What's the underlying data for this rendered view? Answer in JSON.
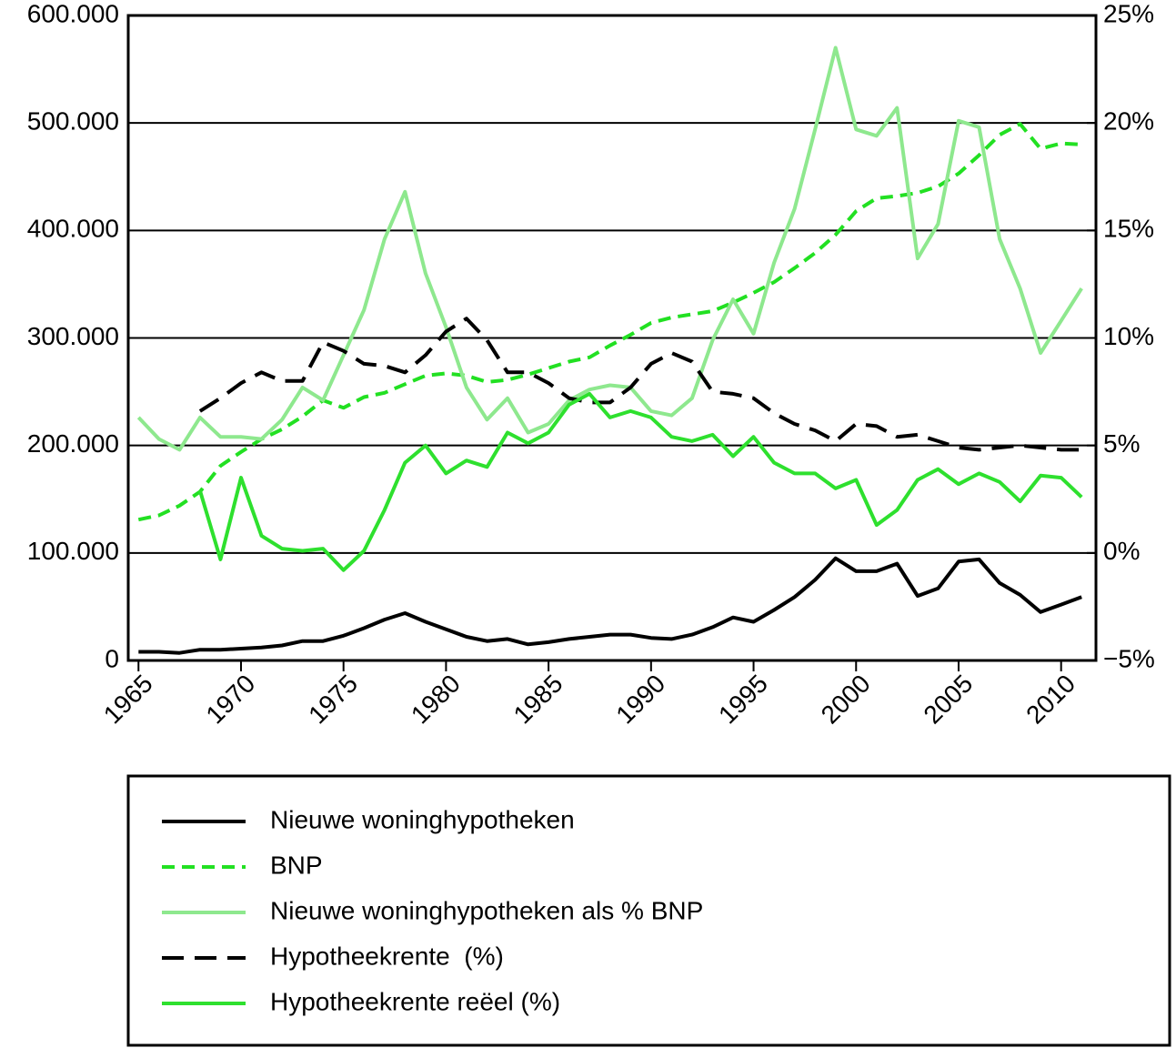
{
  "chart_data": {
    "type": "line",
    "x": [
      1965,
      1966,
      1967,
      1968,
      1969,
      1970,
      1971,
      1972,
      1973,
      1974,
      1975,
      1976,
      1977,
      1978,
      1979,
      1980,
      1981,
      1982,
      1983,
      1984,
      1985,
      1986,
      1987,
      1988,
      1989,
      1990,
      1991,
      1992,
      1993,
      1994,
      1995,
      1996,
      1997,
      1998,
      1999,
      2000,
      2001,
      2002,
      2003,
      2004,
      2005,
      2006,
      2007,
      2008,
      2009,
      2010,
      2011
    ],
    "xlim": [
      1964.5,
      2011.7
    ],
    "xticks": [
      1965,
      1970,
      1975,
      1980,
      1985,
      1990,
      1995,
      2000,
      2005,
      2010
    ],
    "ylim": [
      0,
      600000
    ],
    "yticks": [
      0,
      {
        "value": 100000,
        "label": "100.000"
      },
      {
        "value": 200000,
        "label": "200.000"
      },
      {
        "value": 300000,
        "label": "300.000"
      },
      {
        "value": 400000,
        "label": "400.000"
      },
      {
        "value": 500000,
        "label": "500.000"
      },
      {
        "value": 600000,
        "label": "600.000"
      }
    ],
    "y2lim": [
      -5,
      25
    ],
    "y2ticks": [
      {
        "value": -5,
        "label": "−5%"
      },
      {
        "value": 0,
        "label": "0%"
      },
      {
        "value": 5,
        "label": "5%"
      },
      {
        "value": 10,
        "label": "10%"
      },
      {
        "value": 15,
        "label": "15%"
      },
      {
        "value": 20,
        "label": "20%"
      },
      {
        "value": 25,
        "label": "25%"
      }
    ],
    "grid": true,
    "legend": "bottom",
    "series": [
      {
        "name": "Nieuwe woninghypotheken",
        "color": "#000000",
        "dash": "solid",
        "values": [
          8000,
          8000,
          7000,
          10000,
          10000,
          11000,
          12000,
          14000,
          18000,
          18000,
          23000,
          30000,
          38000,
          44000,
          36000,
          29000,
          22000,
          18000,
          20000,
          15000,
          17000,
          20000,
          22000,
          24000,
          24000,
          21000,
          20000,
          24000,
          31000,
          40000,
          36000,
          47000,
          59000,
          75000,
          95000,
          83000,
          83000,
          90000,
          60000,
          67000,
          92000,
          94000,
          72000,
          61000,
          45000,
          52000,
          59000
        ]
      },
      {
        "name": "BNP",
        "color": "#22e022",
        "dash": "dashed",
        "values": [
          131000,
          135000,
          144000,
          157000,
          181000,
          194000,
          206000,
          215000,
          227000,
          242000,
          235000,
          245000,
          249000,
          257000,
          265000,
          267000,
          265000,
          259000,
          261000,
          266000,
          272000,
          278000,
          282000,
          293000,
          303000,
          314000,
          319000,
          322000,
          325000,
          333000,
          342000,
          352000,
          365000,
          379000,
          396000,
          418000,
          430000,
          432000,
          435000,
          441000,
          453000,
          470000,
          489000,
          499000,
          476000,
          481000,
          480000
        ]
      },
      {
        "name": "Nieuwe woninghypotheken als % BNP",
        "color": "#8ee88e",
        "dash": "solid",
        "axis": "y2",
        "values": [
          6.3,
          5.3,
          4.8,
          6.3,
          5.4,
          5.4,
          5.3,
          6.2,
          7.7,
          7.1,
          9.2,
          11.3,
          14.6,
          16.8,
          13.0,
          10.5,
          7.7,
          6.2,
          7.2,
          5.6,
          6.0,
          7.1,
          7.6,
          7.8,
          7.7,
          6.6,
          6.4,
          7.2,
          9.9,
          11.8,
          10.2,
          13.5,
          16.0,
          19.7,
          23.5,
          19.7,
          19.4,
          20.7,
          13.7,
          15.3,
          20.1,
          19.8,
          14.6,
          12.3,
          9.3,
          10.8,
          12.3
        ]
      },
      {
        "name": "Hypotheekrente  (%)",
        "color": "#000000",
        "dash": "longdash",
        "axis": "y2",
        "values": [
          null,
          null,
          null,
          6.6,
          7.2,
          7.9,
          8.4,
          8.0,
          8.0,
          9.8,
          9.4,
          8.8,
          8.7,
          8.4,
          9.2,
          10.3,
          10.9,
          9.9,
          8.4,
          8.4,
          7.9,
          7.2,
          7.0,
          7.0,
          7.7,
          8.8,
          9.3,
          8.9,
          7.5,
          7.4,
          7.2,
          6.5,
          6.0,
          5.7,
          5.2,
          6.0,
          5.9,
          5.4,
          5.5,
          5.2,
          4.9,
          4.8,
          4.9,
          5.0,
          4.9,
          4.8,
          4.8
        ]
      },
      {
        "name": "Hypotheekrente reëel (%)",
        "color": "#2ee02e",
        "dash": "solid",
        "axis": "y2",
        "values": [
          null,
          null,
          null,
          2.9,
          -0.3,
          3.5,
          0.8,
          0.2,
          0.1,
          0.2,
          -0.8,
          0.1,
          2.0,
          4.2,
          5.0,
          3.7,
          4.3,
          4.0,
          5.6,
          5.1,
          5.6,
          6.9,
          7.4,
          6.3,
          6.6,
          6.3,
          5.4,
          5.2,
          5.5,
          4.5,
          5.4,
          4.2,
          3.7,
          3.7,
          3.0,
          3.4,
          1.3,
          2.0,
          3.4,
          3.9,
          3.2,
          3.7,
          3.3,
          2.4,
          3.6,
          3.5,
          2.6
        ]
      }
    ]
  }
}
